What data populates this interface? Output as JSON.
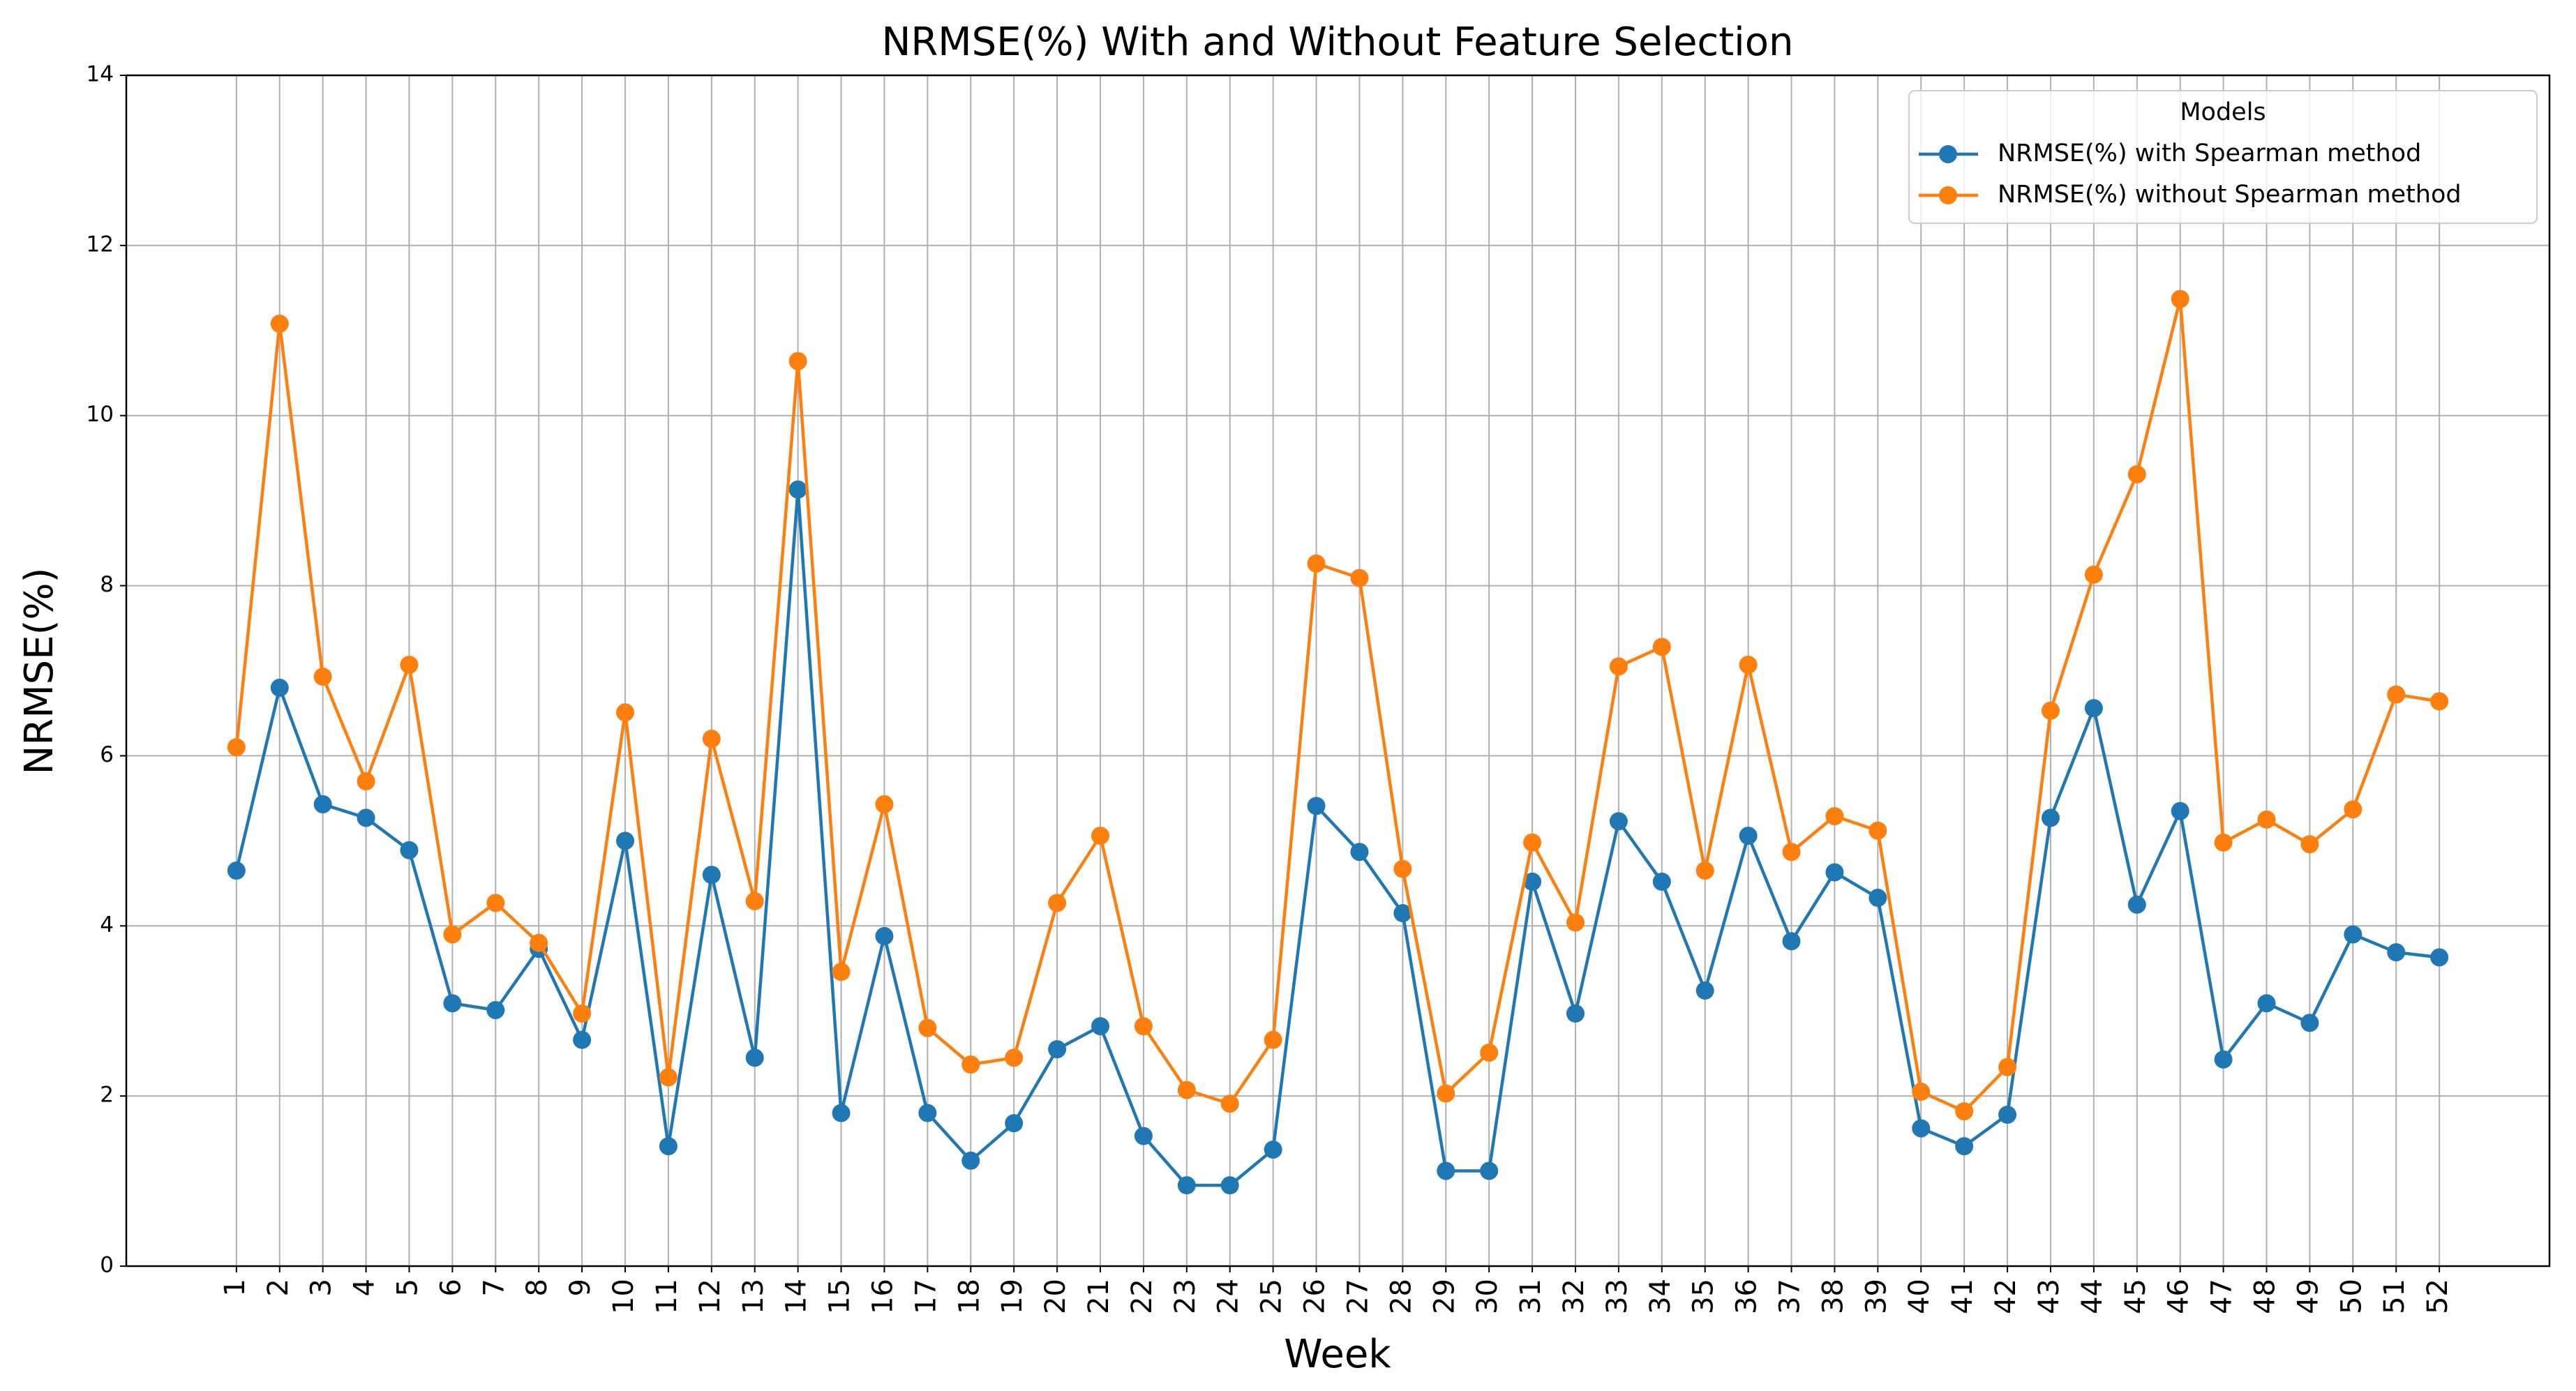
{
  "chart_data": {
    "type": "line",
    "title": "NRMSE(%) With and Without Feature Selection",
    "xlabel": "Week",
    "ylabel": "NRMSE(%)",
    "x": [
      1,
      2,
      3,
      4,
      5,
      6,
      7,
      8,
      9,
      10,
      11,
      12,
      13,
      14,
      15,
      16,
      17,
      18,
      19,
      20,
      21,
      22,
      23,
      24,
      25,
      26,
      27,
      28,
      29,
      30,
      31,
      32,
      33,
      34,
      35,
      36,
      37,
      38,
      39,
      40,
      41,
      42,
      43,
      44,
      45,
      46,
      47,
      48,
      49,
      50,
      51,
      52
    ],
    "xlim": [
      -1.55,
      54.55
    ],
    "xticks": [
      1,
      2,
      3,
      4,
      5,
      6,
      7,
      8,
      9,
      10,
      11,
      12,
      13,
      14,
      15,
      16,
      17,
      18,
      19,
      20,
      21,
      22,
      23,
      24,
      25,
      26,
      27,
      28,
      29,
      30,
      31,
      32,
      33,
      34,
      35,
      36,
      37,
      38,
      39,
      40,
      41,
      42,
      43,
      44,
      45,
      46,
      47,
      48,
      49,
      50,
      51,
      52
    ],
    "ylim": [
      0,
      14
    ],
    "yticks": [
      0,
      2,
      4,
      6,
      8,
      10,
      12,
      14
    ],
    "grid": true,
    "legend_title": "Models",
    "legend_position": "upper-right",
    "series": [
      {
        "name": "NRMSE(%) with Spearman method",
        "color": "#1f77b4",
        "values": [
          4.65,
          6.8,
          5.43,
          5.27,
          4.89,
          3.09,
          3.01,
          3.73,
          2.66,
          5.0,
          1.41,
          4.6,
          2.45,
          9.13,
          1.8,
          3.88,
          1.8,
          1.24,
          1.68,
          2.55,
          2.82,
          1.53,
          0.95,
          0.95,
          1.37,
          5.41,
          4.87,
          4.15,
          1.12,
          1.12,
          4.52,
          2.97,
          5.23,
          4.52,
          3.24,
          5.06,
          3.82,
          4.63,
          4.33,
          1.62,
          1.41,
          1.78,
          5.27,
          6.56,
          4.25,
          5.35,
          2.43,
          3.09,
          2.86,
          3.9,
          3.69,
          3.63
        ]
      },
      {
        "name": "NRMSE(%) without Spearman method",
        "color": "#ff7f0e",
        "values": [
          6.1,
          11.08,
          6.93,
          5.7,
          7.07,
          3.9,
          4.27,
          3.8,
          2.97,
          6.51,
          2.22,
          6.2,
          4.29,
          10.64,
          3.46,
          5.43,
          2.8,
          2.37,
          2.45,
          4.27,
          5.06,
          2.82,
          2.07,
          1.91,
          2.66,
          8.26,
          8.09,
          4.67,
          2.03,
          2.51,
          4.98,
          4.04,
          7.05,
          7.28,
          4.65,
          7.07,
          4.87,
          5.29,
          5.12,
          2.05,
          1.82,
          2.34,
          6.53,
          8.13,
          9.31,
          11.37,
          4.98,
          5.25,
          4.96,
          5.37,
          6.72,
          6.64
        ]
      }
    ]
  }
}
